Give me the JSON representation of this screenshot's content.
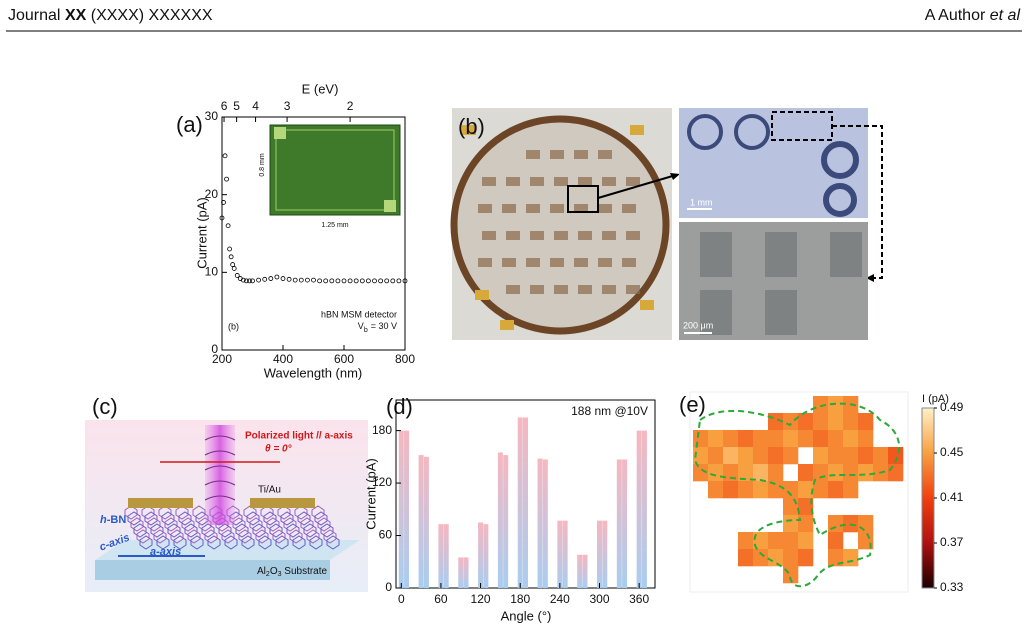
{
  "header": {
    "journal": "Journal",
    "volume": "XX",
    "issue": "(XXXX) XXXXXX",
    "author": "A Author",
    "et_al": "et al"
  },
  "panel_a": {
    "label": "(a)",
    "type": "scatter",
    "x_label": "Wavelength (nm)",
    "y_label": "Current (pA)",
    "top_label": "E (eV)",
    "x": [
      200,
      205,
      210,
      215,
      220,
      225,
      230,
      235,
      240,
      250,
      260,
      270,
      280,
      290,
      300,
      320,
      340,
      360,
      380,
      400,
      420,
      440,
      460,
      480,
      500,
      520,
      540,
      560,
      580,
      600,
      620,
      640,
      660,
      680,
      700,
      720,
      740,
      760,
      780,
      800
    ],
    "values": [
      17,
      19,
      25,
      22,
      16,
      13,
      12,
      11,
      10.5,
      9.6,
      9.2,
      9.0,
      8.9,
      8.9,
      8.9,
      9.0,
      9.1,
      9.2,
      9.4,
      9.2,
      9.1,
      9.0,
      9.0,
      9.0,
      9.0,
      8.9,
      8.9,
      8.9,
      8.9,
      8.9,
      8.9,
      8.9,
      8.9,
      8.9,
      8.9,
      8.9,
      8.9,
      8.9,
      8.9,
      8.9
    ],
    "xlim": [
      200,
      800
    ],
    "xticks": [
      200,
      400,
      600,
      800
    ],
    "ylim": [
      0,
      30
    ],
    "yticks": [
      0,
      10,
      20,
      30
    ],
    "top_ticks": [
      6,
      5,
      4,
      3,
      2
    ],
    "legend_title": "hBN MSM detector",
    "bias_symbol": "V",
    "bias_subscript": "b",
    "bias_value": "= 30 V",
    "sub_label": "(b)",
    "inset_height": "0.8 mm",
    "inset_width": "1.25 mm"
  },
  "panel_b": {
    "label": "(b)",
    "scale_top": "1 mm",
    "scale_bottom": "200 μm"
  },
  "panel_c": {
    "label": "(c)",
    "light": "Polarized light // a-axis",
    "angle": "θ = 0°",
    "electrode": "Ti/Au",
    "layer_italic": "h",
    "layer": "-BN",
    "c_axis": "c-axis",
    "a_axis": "a-axis",
    "substrate": [
      "Al",
      "2",
      "O",
      "3",
      " Substrate"
    ]
  },
  "panel_d": {
    "label": "(d)",
    "type": "bar",
    "annotation": "188 nm @10V",
    "x_label": "Angle (°)",
    "y_label": "Current (pA)",
    "x": [
      0,
      8,
      30,
      38,
      60,
      68,
      90,
      98,
      120,
      128,
      150,
      158,
      180,
      188,
      210,
      218,
      240,
      248,
      270,
      278,
      300,
      308,
      330,
      338,
      360,
      368
    ],
    "values": [
      180,
      180,
      152,
      150,
      73,
      73,
      35,
      35,
      75,
      73,
      155,
      152,
      195,
      195,
      148,
      147,
      77,
      77,
      38,
      38,
      77,
      77,
      147,
      147,
      180,
      180
    ],
    "xlim": [
      -8,
      384
    ],
    "xticks": [
      0,
      60,
      120,
      180,
      240,
      300,
      360
    ],
    "ylim": [
      0,
      215
    ],
    "yticks": [
      0,
      60,
      120,
      180
    ]
  },
  "panel_e": {
    "label": "(e)",
    "type": "heatmap",
    "colorbar_label": "I (pA)",
    "clim": [
      0.33,
      0.49
    ],
    "colorbar_ticks": [
      0.49,
      0.45,
      0.41,
      0.37,
      0.33
    ],
    "colorscale": [
      "#1a0000",
      "#b01010",
      "#f04010",
      "#f8a040",
      "#fff0c8"
    ],
    "values": [
      [
        null,
        null,
        null,
        null,
        null,
        null,
        null,
        null,
        0.44,
        0.45,
        0.44,
        null,
        null,
        null
      ],
      [
        null,
        null,
        null,
        null,
        null,
        0.43,
        0.44,
        0.43,
        0.44,
        0.45,
        0.44,
        0.43,
        null,
        null
      ],
      [
        0.44,
        0.45,
        0.44,
        0.43,
        0.44,
        0.44,
        0.45,
        0.44,
        0.43,
        0.44,
        0.45,
        0.44,
        null,
        null
      ],
      [
        0.45,
        0.44,
        0.46,
        0.45,
        0.44,
        0.43,
        0.44,
        null,
        0.45,
        0.44,
        0.44,
        0.43,
        0.44,
        0.42
      ],
      [
        0.44,
        0.45,
        0.44,
        0.45,
        0.46,
        0.44,
        null,
        0.43,
        0.44,
        0.45,
        0.44,
        0.45,
        0.44,
        0.43
      ],
      [
        null,
        0.44,
        0.43,
        0.44,
        0.45,
        0.44,
        0.44,
        0.45,
        0.44,
        0.43,
        0.44,
        null,
        null,
        null
      ],
      [
        null,
        null,
        null,
        null,
        null,
        null,
        0.44,
        0.43,
        null,
        null,
        null,
        null,
        null,
        null
      ],
      [
        null,
        null,
        null,
        null,
        null,
        null,
        0.45,
        0.44,
        null,
        0.44,
        0.43,
        0.44,
        null,
        null
      ],
      [
        null,
        null,
        null,
        0.44,
        0.45,
        0.44,
        0.44,
        0.45,
        null,
        0.43,
        null,
        0.44,
        null,
        null
      ],
      [
        null,
        null,
        null,
        0.43,
        0.44,
        0.45,
        0.44,
        0.43,
        null,
        0.44,
        0.45,
        null,
        null,
        null
      ],
      [
        null,
        null,
        null,
        null,
        null,
        null,
        0.44,
        null,
        null,
        null,
        null,
        null,
        null,
        null
      ]
    ]
  }
}
